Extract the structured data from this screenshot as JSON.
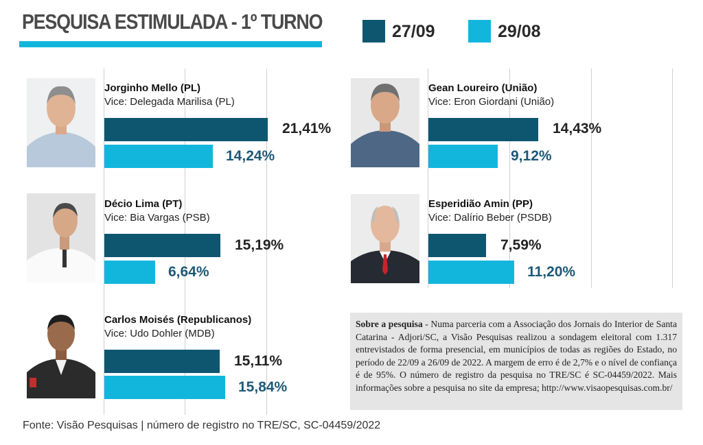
{
  "title": "PESQUISA ESTIMULADA - 1º TURNO",
  "legend": [
    {
      "label": "27/09",
      "color": "#0e5670"
    },
    {
      "label": "29/08",
      "color": "#12b6dd"
    }
  ],
  "chart_data": {
    "type": "bar",
    "title": "PESQUISA ESTIMULADA - 1º TURNO",
    "series": [
      {
        "name": "27/09",
        "color": "#0e5670",
        "values": [
          21.41,
          15.19,
          15.11,
          14.43,
          7.59
        ]
      },
      {
        "name": "29/08",
        "color": "#12b6dd",
        "values": [
          14.24,
          6.64,
          15.84,
          9.12,
          11.2
        ]
      }
    ],
    "categories": [
      "Jorginho Mello (PL)",
      "Décio Lima (PT)",
      "Carlos Moisés (Republicanos)",
      "Gean Loureiro (União)",
      "Esperidião Amin (PP)"
    ],
    "candidates": [
      {
        "name": "Jorginho Mello (PL)",
        "vice": "Vice: Delegada Marilisa (PL)",
        "v1": 21.41,
        "v1_label": "21,41%",
        "v2": 14.24,
        "v2_label": "14,24%"
      },
      {
        "name": "Décio Lima (PT)",
        "vice": "Vice: Bia Vargas (PSB)",
        "v1": 15.19,
        "v1_label": "15,19%",
        "v2": 6.64,
        "v2_label": "6,64%"
      },
      {
        "name": "Carlos Moisés (Republicanos)",
        "vice": "Vice: Udo Dohler (MDB)",
        "v1": 15.11,
        "v1_label": "15,11%",
        "v2": 15.84,
        "v2_label": "15,84%"
      },
      {
        "name": "Gean Loureiro (União)",
        "vice": "Vice: Eron Giordani (União)",
        "v1": 14.43,
        "v1_label": "14,43%",
        "v2": 9.12,
        "v2_label": "9,12%"
      },
      {
        "name": "Esperidião Amin (PP)",
        "vice": "Vice: Dalírio Beber (PSDB)",
        "v1": 7.59,
        "v1_label": "7,59%",
        "v2": 11.2,
        "v2_label": "11,20%"
      }
    ],
    "grid": true
  },
  "info": {
    "heading": "Sobre a pesquisa",
    "body": " - Numa parceria com a Associação dos Jornais do Interior de Santa Catarina - Adjori/SC, a Visão Pesquisas realizou a sondagem eleitoral com 1.317 entrevistados de forma presencial, em municípios de todas as regiões do Estado, no período de 22/09 a 26/09 de 2022. A margem de erro é de 2,7% e o nível de confiança é de 95%. O número de registro da pesquisa no TRE/SC é SC-04459/2022. Mais informações sobre a pesquisa no site da empresa; http://www.visaopesquisas.com.br/"
  },
  "source": "Fonte: Visão Pesquisas  | número de registro no TRE/SC, SC-04459/2022"
}
